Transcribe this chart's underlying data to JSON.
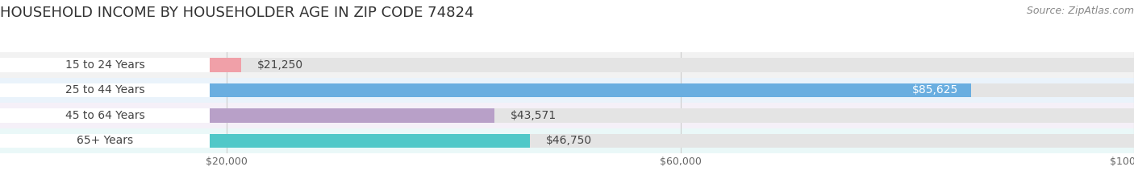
{
  "title": "HOUSEHOLD INCOME BY HOUSEHOLDER AGE IN ZIP CODE 74824",
  "source": "Source: ZipAtlas.com",
  "categories": [
    "15 to 24 Years",
    "25 to 44 Years",
    "45 to 64 Years",
    "65+ Years"
  ],
  "values": [
    21250,
    85625,
    43571,
    46750
  ],
  "labels": [
    "$21,250",
    "$85,625",
    "$43,571",
    "$46,750"
  ],
  "bar_colors": [
    "#f0a0a8",
    "#6aaee0",
    "#b8a0c8",
    "#50c8c8"
  ],
  "label_inside": [
    false,
    true,
    false,
    false
  ],
  "xlim": [
    0,
    100000
  ],
  "xticks": [
    20000,
    60000,
    100000
  ],
  "xticklabels": [
    "$20,000",
    "$60,000",
    "$100,000"
  ],
  "title_fontsize": 13,
  "source_fontsize": 9,
  "cat_fontsize": 10,
  "val_fontsize": 10,
  "tick_fontsize": 9,
  "background_color": "#ffffff",
  "bar_height": 0.55,
  "row_bg_odd": "#f5f5f5",
  "row_bg_even": "#ffffff",
  "bg_bar_color": "#e4e4e4",
  "gridline_color": "#cccccc"
}
